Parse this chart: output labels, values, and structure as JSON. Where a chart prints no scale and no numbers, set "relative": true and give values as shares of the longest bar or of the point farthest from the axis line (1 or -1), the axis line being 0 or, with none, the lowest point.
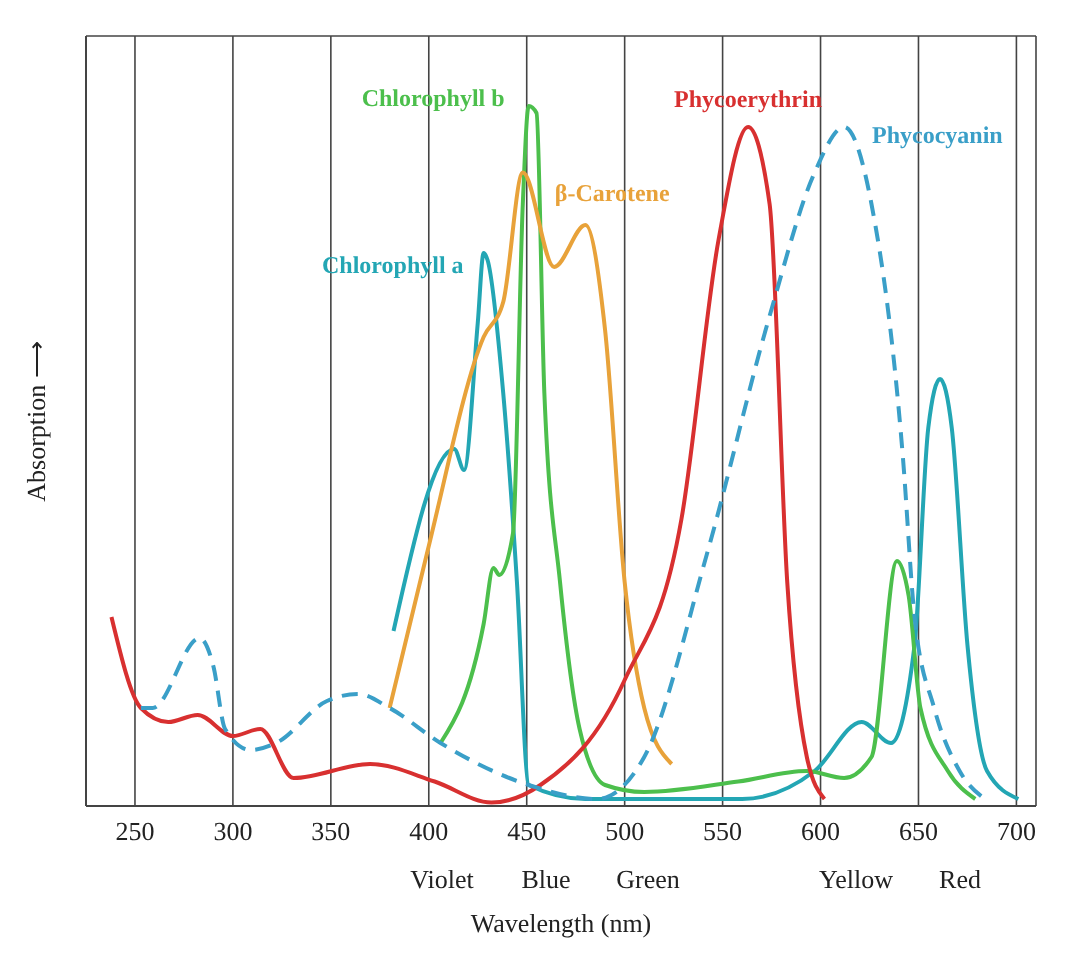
{
  "chart_data": {
    "type": "line",
    "relative": true,
    "xlabel": "Wavelength (nm)",
    "ylabel": "Absorption ⟶",
    "xlim": [
      225,
      710
    ],
    "xticks": [
      250,
      300,
      350,
      400,
      450,
      500,
      550,
      600,
      650,
      700
    ],
    "grid": true,
    "legend": false,
    "marker": "none",
    "tick_labels": "x",
    "annotations": [
      "Violet",
      "Blue",
      "Green",
      "Yellow",
      "Red"
    ],
    "series": [
      {
        "name": "Chlorophyll a",
        "color": "#23a6b4",
        "x": [
          382,
          413,
          418,
          425,
          428,
          430,
          438,
          445,
          451,
          480,
          520,
          560,
          597,
          621,
          636,
          648,
          655,
          661,
          667,
          675,
          685,
          701
        ],
        "values": [
          0.25,
          0.51,
          0.48,
          0.69,
          0.79,
          0.78,
          0.59,
          0.32,
          0.03,
          0.01,
          0.01,
          0.01,
          0.05,
          0.12,
          0.09,
          0.23,
          0.54,
          0.61,
          0.54,
          0.23,
          0.05,
          0.01
        ]
      },
      {
        "name": "Chlorophyll b",
        "color": "#4cbf4c",
        "x": [
          406,
          428,
          433,
          436,
          443,
          448,
          451,
          455,
          459,
          467,
          477,
          490,
          510,
          558,
          593,
          612,
          626,
          639,
          645,
          651,
          665,
          679
        ],
        "values": [
          0.09,
          0.26,
          0.34,
          0.33,
          0.39,
          0.86,
          1.0,
          0.99,
          0.59,
          0.32,
          0.11,
          0.03,
          0.02,
          0.035,
          0.05,
          0.04,
          0.07,
          0.35,
          0.3,
          0.14,
          0.05,
          0.01
        ]
      },
      {
        "name": "β-Carotene",
        "color": "#e8a23a",
        "x": [
          380,
          399,
          428,
          438,
          448,
          464,
          480,
          490,
          500,
          510,
          524
        ],
        "values": [
          0.14,
          0.36,
          0.67,
          0.72,
          0.905,
          0.77,
          0.83,
          0.68,
          0.32,
          0.14,
          0.06
        ]
      },
      {
        "name": "Phycoerythrin",
        "color": "#d83030",
        "x": [
          238,
          253,
          267,
          282,
          300,
          314,
          331,
          370,
          403,
          432,
          457,
          500,
          529,
          548,
          563,
          574,
          583,
          593,
          602
        ],
        "values": [
          0.27,
          0.14,
          0.12,
          0.13,
          0.1,
          0.11,
          0.04,
          0.06,
          0.035,
          0.005,
          0.03,
          0.18,
          0.41,
          0.81,
          0.97,
          0.86,
          0.32,
          0.07,
          0.01
        ]
      },
      {
        "name": "Phycocyanin",
        "color": "#3a9fc8",
        "line_style": "dashed",
        "x": [
          253,
          259,
          283,
          290,
          296,
          309,
          322,
          348,
          364,
          380,
          406,
          451,
          486,
          510,
          542,
          574,
          597,
          612,
          626,
          642,
          648,
          658,
          671,
          684
        ],
        "values": [
          0.14,
          0.14,
          0.24,
          0.2,
          0.11,
          0.08,
          0.09,
          0.15,
          0.16,
          0.14,
          0.09,
          0.03,
          0.01,
          0.07,
          0.36,
          0.7,
          0.905,
          0.97,
          0.86,
          0.5,
          0.27,
          0.14,
          0.05,
          0.01
        ]
      }
    ]
  }
}
